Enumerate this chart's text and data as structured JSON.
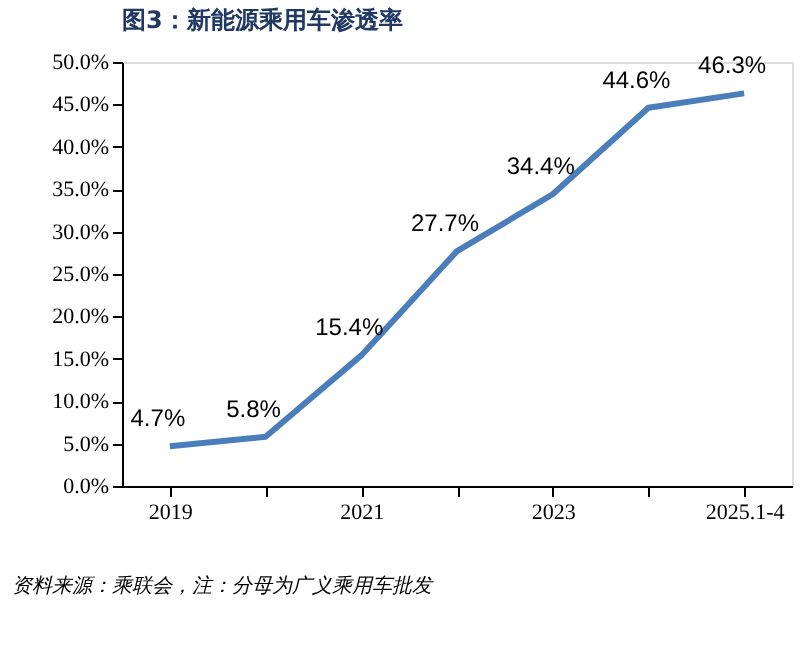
{
  "chart_data": {
    "type": "line",
    "title": "图3：新能源乘用车渗透率",
    "categories": [
      "2019",
      null,
      "2021",
      null,
      "2023",
      null,
      "2025.1-4"
    ],
    "series": [
      {
        "color": "#4a7ebb",
        "values": [
          4.7,
          5.8,
          15.4,
          27.7,
          34.4,
          44.6,
          46.3
        ],
        "value_labels": [
          "4.7%",
          "5.8%",
          "15.4%",
          "27.7%",
          "34.4%",
          "44.6%",
          "46.3%"
        ]
      }
    ],
    "ylim": [
      0,
      50
    ],
    "yticks": [
      {
        "value": 0,
        "label": "0.0%"
      },
      {
        "value": 5,
        "label": "5.0%"
      },
      {
        "value": 10,
        "label": "10.0%"
      },
      {
        "value": 15,
        "label": "15.0%"
      },
      {
        "value": 20,
        "label": "20.0%"
      },
      {
        "value": 25,
        "label": "25.0%"
      },
      {
        "value": 30,
        "label": "30.0%"
      },
      {
        "value": 35,
        "label": "35.0%"
      },
      {
        "value": 40,
        "label": "40.0%"
      },
      {
        "value": 45,
        "label": "45.0%"
      },
      {
        "value": 50,
        "label": "50.0%"
      }
    ],
    "grid": false,
    "marker": "none",
    "line_style": "solid",
    "annotations": [
      "资料来源：乘联会，注：分母为广义乘用车批发"
    ]
  }
}
